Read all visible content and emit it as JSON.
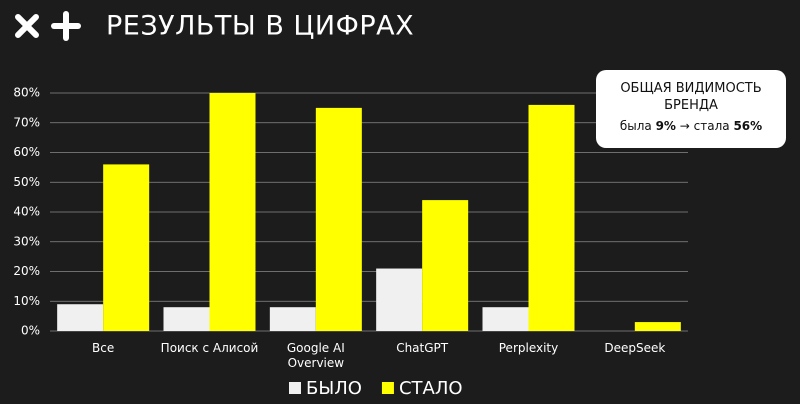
{
  "title": "РЕЗУЛЬТЫ В ЦИФРАХ",
  "chart_data": {
    "type": "bar",
    "categories": [
      "Все",
      "Поиск с Алисой",
      "Google AI Overview",
      "ChatGPT",
      "Perplexity",
      "DeepSeek"
    ],
    "series": [
      {
        "name": "БЫЛО",
        "color": "#f0f0f0",
        "values": [
          9,
          8,
          8,
          21,
          8,
          0
        ]
      },
      {
        "name": "СТАЛО",
        "color": "#ffff00",
        "values": [
          56,
          80,
          75,
          44,
          76,
          3
        ]
      }
    ],
    "ylim": [
      0,
      80
    ],
    "yticks": [
      {
        "value": 0,
        "label": "0%"
      },
      {
        "value": 10,
        "label": "10%"
      },
      {
        "value": 20,
        "label": "20%"
      },
      {
        "value": 30,
        "label": "30%"
      },
      {
        "value": 40,
        "label": "40%"
      },
      {
        "value": 50,
        "label": "50%"
      },
      {
        "value": 60,
        "label": "60%"
      },
      {
        "value": 70,
        "label": "70%"
      },
      {
        "value": 80,
        "label": "80%"
      }
    ],
    "grid": true,
    "annotation": {
      "title": "ОБЩАЯ ВИДИМОСТЬ БРЕНДА",
      "before_text": "была",
      "before_value": "9%",
      "after_text": "→ стала",
      "after_value": "56%"
    }
  }
}
